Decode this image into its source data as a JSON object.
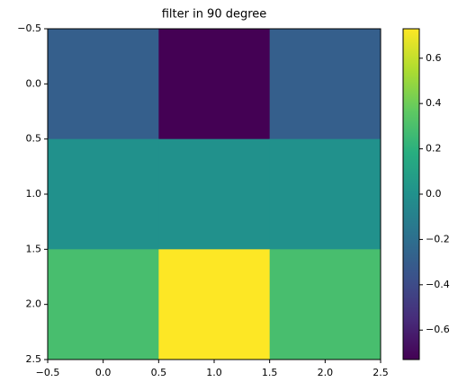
{
  "chart_data": {
    "type": "heatmap",
    "title": "filter in 90 degree",
    "z": [
      [
        -0.29,
        -0.73,
        -0.29
      ],
      [
        0,
        0,
        0
      ],
      [
        0.29,
        0.73,
        0.29
      ]
    ],
    "colormap": [
      "#440154",
      "#472d7b",
      "#3b528b",
      "#2c728e",
      "#21918c",
      "#28ae80",
      "#5ec962",
      "#addc30",
      "#fde725"
    ],
    "clim": [
      -0.73,
      0.73
    ],
    "cticks": [
      {
        "value": -0.6,
        "label": "−0.6"
      },
      {
        "value": -0.4,
        "label": "−0.4"
      },
      {
        "value": -0.2,
        "label": "−0.2"
      },
      {
        "value": 0,
        "label": "0.0"
      },
      0.2,
      0.4,
      0.6
    ],
    "xlim": [
      -0.5,
      2.5
    ],
    "xticks": [
      {
        "value": -0.5,
        "label": "−0.5"
      },
      {
        "value": 0,
        "label": "0.0"
      },
      0.5,
      {
        "value": 1,
        "label": "1.0"
      },
      1.5,
      {
        "value": 2,
        "label": "2.0"
      },
      2.5
    ],
    "ylim": [
      -0.5,
      2.5
    ],
    "invert_y": true,
    "yticks": [
      {
        "value": -0.5,
        "label": "−0.5"
      },
      {
        "value": 0,
        "label": "0.0"
      },
      0.5,
      {
        "value": 1,
        "label": "1.0"
      },
      1.5,
      {
        "value": 2,
        "label": "2.0"
      },
      2.5
    ]
  }
}
